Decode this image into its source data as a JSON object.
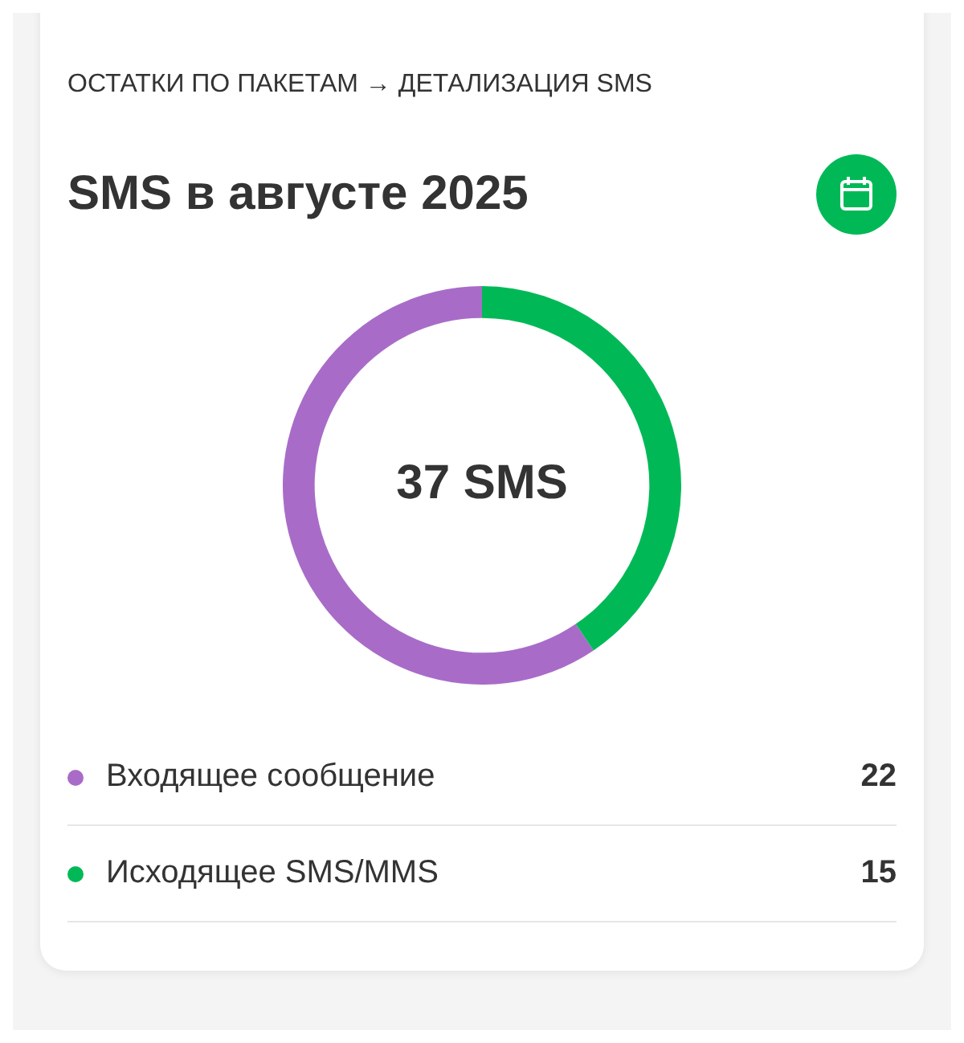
{
  "chart_data": {
    "type": "donut",
    "subtitle": "ОСТАТКИ ПО ПАКЕТАМ → ДЕТАЛИЗАЦИЯ SMS",
    "title": "SMS в августе 2025",
    "categories": [
      "Входящее сообщение",
      "Исходящее SMS/MMS"
    ],
    "values": [
      22,
      15
    ],
    "colors": [
      "#a86cc8",
      "#00b956"
    ],
    "annotations": [
      "37 SMS"
    ],
    "legend": "bottom",
    "data_labels": true
  }
}
